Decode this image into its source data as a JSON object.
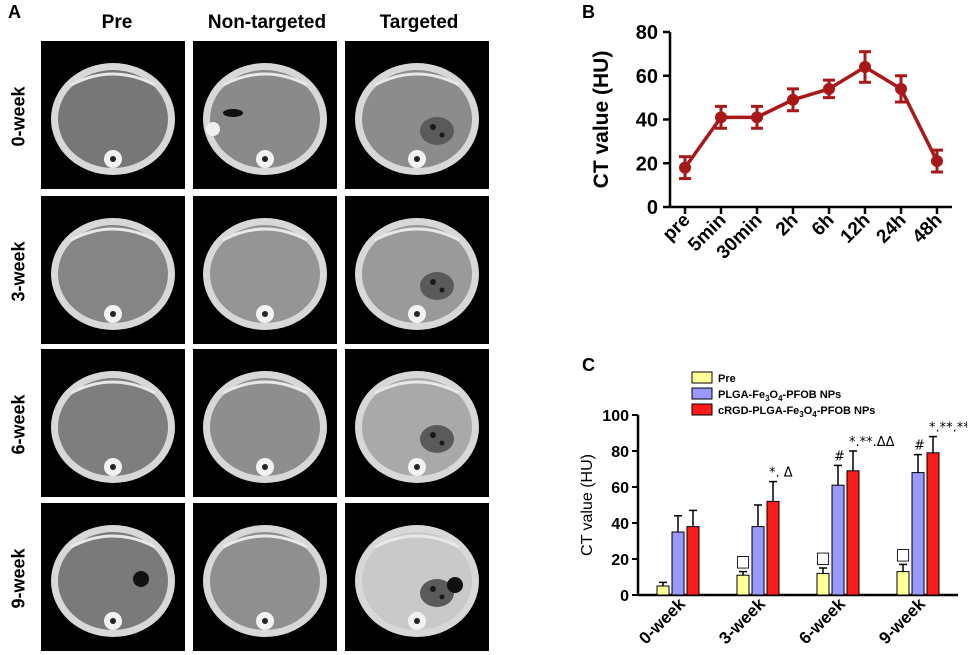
{
  "panels": {
    "a": {
      "letter": "A",
      "columns": [
        "Pre",
        "Non-targeted",
        "Targeted"
      ],
      "rows": [
        "0-week",
        "3-week",
        "6-week",
        "9-week"
      ]
    },
    "b": {
      "letter": "B"
    },
    "c": {
      "letter": "C"
    }
  },
  "chart_data": [
    {
      "id": "B",
      "type": "line",
      "title": "",
      "xlabel": "",
      "ylabel": "CT value (HU)",
      "ylim": [
        0,
        80
      ],
      "yticks": [
        0,
        20,
        40,
        60,
        80
      ],
      "categories": [
        "pre",
        "5min",
        "30min",
        "2h",
        "6h",
        "12h",
        "24h",
        "48h"
      ],
      "series": [
        {
          "name": "CT value",
          "color": "#a81818",
          "values": [
            18,
            41,
            41,
            49,
            54,
            64,
            54,
            21
          ],
          "errors": [
            5,
            5,
            5,
            5,
            4,
            7,
            6,
            5
          ]
        }
      ],
      "grid": false
    },
    {
      "id": "C",
      "type": "bar",
      "title": "",
      "xlabel": "",
      "ylabel": "CT value (HU)",
      "ylim": [
        0,
        100
      ],
      "yticks": [
        0,
        20,
        40,
        60,
        80,
        100
      ],
      "categories": [
        "0-week",
        "3-week",
        "6-week",
        "9-week"
      ],
      "legend_position": "top",
      "series": [
        {
          "name": "Pre",
          "name_parts": [
            "Pre"
          ],
          "color": "#ffff99",
          "values": [
            5,
            11,
            12,
            13
          ],
          "errors": [
            2,
            2,
            3,
            4
          ]
        },
        {
          "name": "PLGA-Fe3O4-PFOB NPs",
          "name_parts": [
            "PLGA-Fe",
            "3",
            "O",
            "4",
            "-PFOB NPs"
          ],
          "color": "#9999ff",
          "values": [
            35,
            38,
            61,
            68
          ],
          "errors": [
            9,
            12,
            11,
            10
          ]
        },
        {
          "name": "cRGD-PLGA-Fe3O4-PFOB NPs",
          "name_parts": [
            "cRGD-PLGA-Fe",
            "3",
            "O",
            "4",
            "-PFOB NPs"
          ],
          "color": "#ff1a1a",
          "values": [
            38,
            52,
            69,
            79
          ],
          "errors": [
            9,
            11,
            11,
            9
          ]
        }
      ],
      "annotations": [
        {
          "category": "3-week",
          "series": 0,
          "text": "□"
        },
        {
          "category": "6-week",
          "series": 0,
          "text": "□"
        },
        {
          "category": "9-week",
          "series": 0,
          "text": "□"
        },
        {
          "category": "6-week",
          "series": 1,
          "text": "#"
        },
        {
          "category": "9-week",
          "series": 1,
          "text": "#"
        },
        {
          "category": "3-week",
          "series": 2,
          "text": "*. Δ"
        },
        {
          "category": "6-week",
          "series": 2,
          "text": "*.**.ΔΔ"
        },
        {
          "category": "9-week",
          "series": 2,
          "text": "*.**.***.ΔΔΔ"
        }
      ]
    }
  ]
}
